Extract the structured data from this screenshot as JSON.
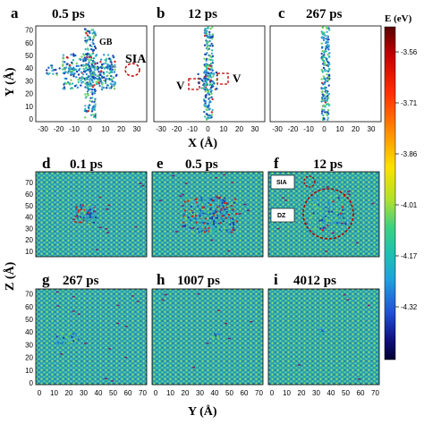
{
  "figure": {
    "panels": [
      {
        "id": "a",
        "label": "a",
        "time": "0.5 ps"
      },
      {
        "id": "b",
        "label": "b",
        "time": "12 ps"
      },
      {
        "id": "c",
        "label": "c",
        "time": "267 ps"
      },
      {
        "id": "d",
        "label": "d",
        "time": "0.1 ps"
      },
      {
        "id": "e",
        "label": "e",
        "time": "0.5 ps"
      },
      {
        "id": "f",
        "label": "f",
        "time": "12 ps"
      },
      {
        "id": "g",
        "label": "g",
        "time": "267 ps"
      },
      {
        "id": "h",
        "label": "h",
        "time": "1007 ps"
      },
      {
        "id": "i",
        "label": "i",
        "time": "4012 ps"
      }
    ],
    "top_row": {
      "ylabel": "Y (Å)",
      "xlabel": "X (Å)",
      "yticks": [
        "0",
        "10",
        "20",
        "30",
        "40",
        "50",
        "60",
        "70"
      ],
      "xticks": [
        "-30",
        "-20",
        "-10",
        "0",
        "10",
        "20",
        "30"
      ]
    },
    "bottom_rows": {
      "ylabel": "Z (Å)",
      "xlabel": "Y (Å)",
      "yticks": [
        "10",
        "20",
        "30",
        "40",
        "50",
        "60",
        "70"
      ],
      "yticks_lower": [
        "0",
        "10",
        "20",
        "30",
        "40",
        "50",
        "60",
        "70"
      ],
      "xticks": [
        "0",
        "10",
        "20",
        "30",
        "40",
        "50",
        "60",
        "70"
      ]
    },
    "annotations": {
      "gb": "GB",
      "sia": "SIA",
      "v_left": "V",
      "v_right": "V",
      "sia_box": "SIA",
      "dz_box": "DZ"
    },
    "colorbar": {
      "title": "E (eV)",
      "ticks": [
        "-3.56",
        "-3.71",
        "-3.86",
        "-4.01",
        "-4.17",
        "-4.32"
      ],
      "colors": [
        "#5a0000",
        "#c00000",
        "#ff3000",
        "#ff9000",
        "#ffe000",
        "#c8e020",
        "#60d060",
        "#20c0a0",
        "#20a0d0",
        "#2050d0",
        "#101090",
        "#000040"
      ]
    }
  }
}
